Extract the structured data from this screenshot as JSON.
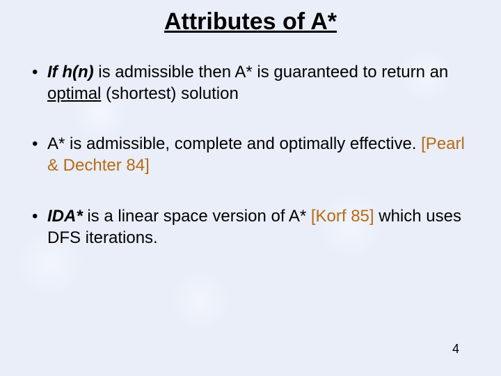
{
  "title": {
    "text": "Attributes of A*",
    "fontsize": 34
  },
  "bullets": {
    "fontsize": 24,
    "gap": 42,
    "hn": "If h(n)",
    "b1_rest1": " is admissible then A* is guaranteed to return an ",
    "optimal_word": "optimal",
    "b1_rest2": " (shortest) solution",
    "b2_a": "A* is admissible, complete and optimally effective. ",
    "b2_ref": "[Pearl & Dechter 84]",
    "ida": "IDA*",
    "b3_a": " is a linear space version of A* ",
    "b3_ref": "[Korf 85]",
    "b3_b": " which uses DFS iterations."
  },
  "pagenum": {
    "text": "4",
    "fontsize": 18
  },
  "colors": {
    "ref": "#b86a14",
    "text": "#000000",
    "bg": "#e9eef9"
  }
}
